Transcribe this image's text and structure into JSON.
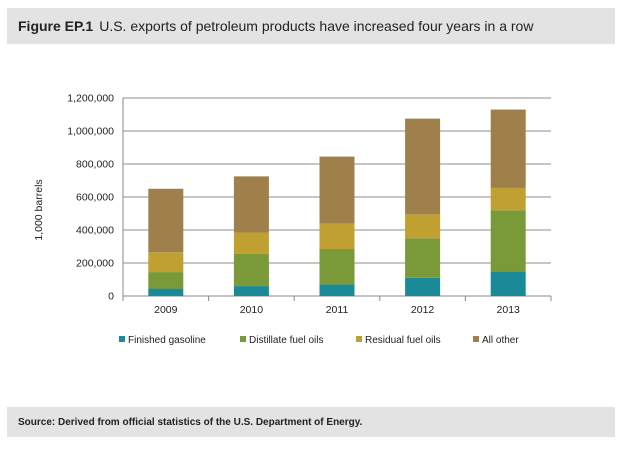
{
  "header": {
    "figure_label": "Figure EP.1",
    "title": "U.S. exports of petroleum products have increased four years in a row"
  },
  "footer": {
    "source": "Source: Derived from official statistics of the U.S. Department of Energy."
  },
  "chart_data": {
    "type": "bar",
    "stacked": true,
    "categories": [
      "2009",
      "2010",
      "2011",
      "2012",
      "2013"
    ],
    "ylabel": "1,000 barrels",
    "xlabel": "",
    "ylim": [
      0,
      1200000
    ],
    "yticks": [
      0,
      200000,
      400000,
      600000,
      800000,
      1000000,
      1200000
    ],
    "ytick_labels": [
      "0",
      "200,000",
      "400,000",
      "600,000",
      "800,000",
      "1,000,000",
      "1,200,000"
    ],
    "grid": true,
    "legend_position": "bottom",
    "series": [
      {
        "name": "Finished gasoline",
        "color": "#1a8a99",
        "values": [
          45000,
          60000,
          70000,
          110000,
          150000
        ]
      },
      {
        "name": "Distillate fuel oils",
        "color": "#7a9a3a",
        "values": [
          100000,
          195000,
          215000,
          240000,
          370000
        ]
      },
      {
        "name": "Residual fuel oils",
        "color": "#bfa030",
        "values": [
          120000,
          130000,
          155000,
          145000,
          135000
        ]
      },
      {
        "name": "All other",
        "color": "#a0804a",
        "values": [
          385000,
          340000,
          405000,
          580000,
          475000
        ]
      }
    ]
  }
}
